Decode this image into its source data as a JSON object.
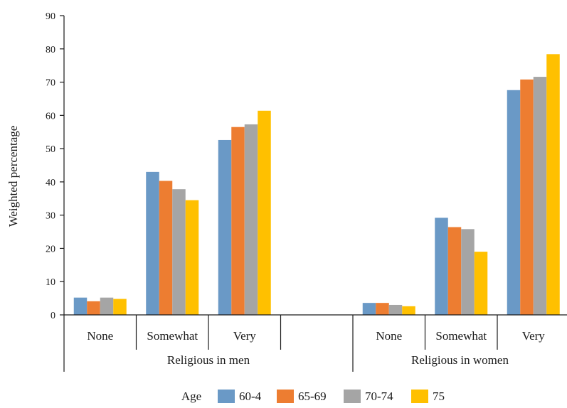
{
  "chart_data": {
    "type": "bar",
    "ylabel": "Weighted percentage",
    "ylim": [
      0,
      90
    ],
    "yticks": [
      0,
      10,
      20,
      30,
      40,
      50,
      60,
      70,
      80,
      90
    ],
    "grid": false,
    "legend_position": "bottom",
    "legend_title": "Age",
    "colors": [
      "#6A99C6",
      "#ED7D31",
      "#A5A5A5",
      "#FFC000"
    ],
    "groups": [
      {
        "label": "Religious in men",
        "categories": [
          "None",
          "Somewhat",
          "Very",
          ""
        ]
      },
      {
        "label": "Religious in women",
        "categories": [
          "None",
          "Somewhat",
          "Very"
        ]
      }
    ],
    "series": [
      {
        "name": "60-4",
        "values": [
          5.2,
          43.0,
          52.6,
          null,
          3.6,
          29.2,
          67.6
        ]
      },
      {
        "name": "65-69",
        "values": [
          4.1,
          40.3,
          56.5,
          null,
          3.6,
          26.4,
          70.8
        ]
      },
      {
        "name": "70-74",
        "values": [
          5.2,
          37.8,
          57.3,
          null,
          3.0,
          25.8,
          71.6
        ]
      },
      {
        "name": "75",
        "values": [
          4.8,
          34.5,
          61.4,
          null,
          2.6,
          19.0,
          78.4
        ]
      }
    ]
  }
}
